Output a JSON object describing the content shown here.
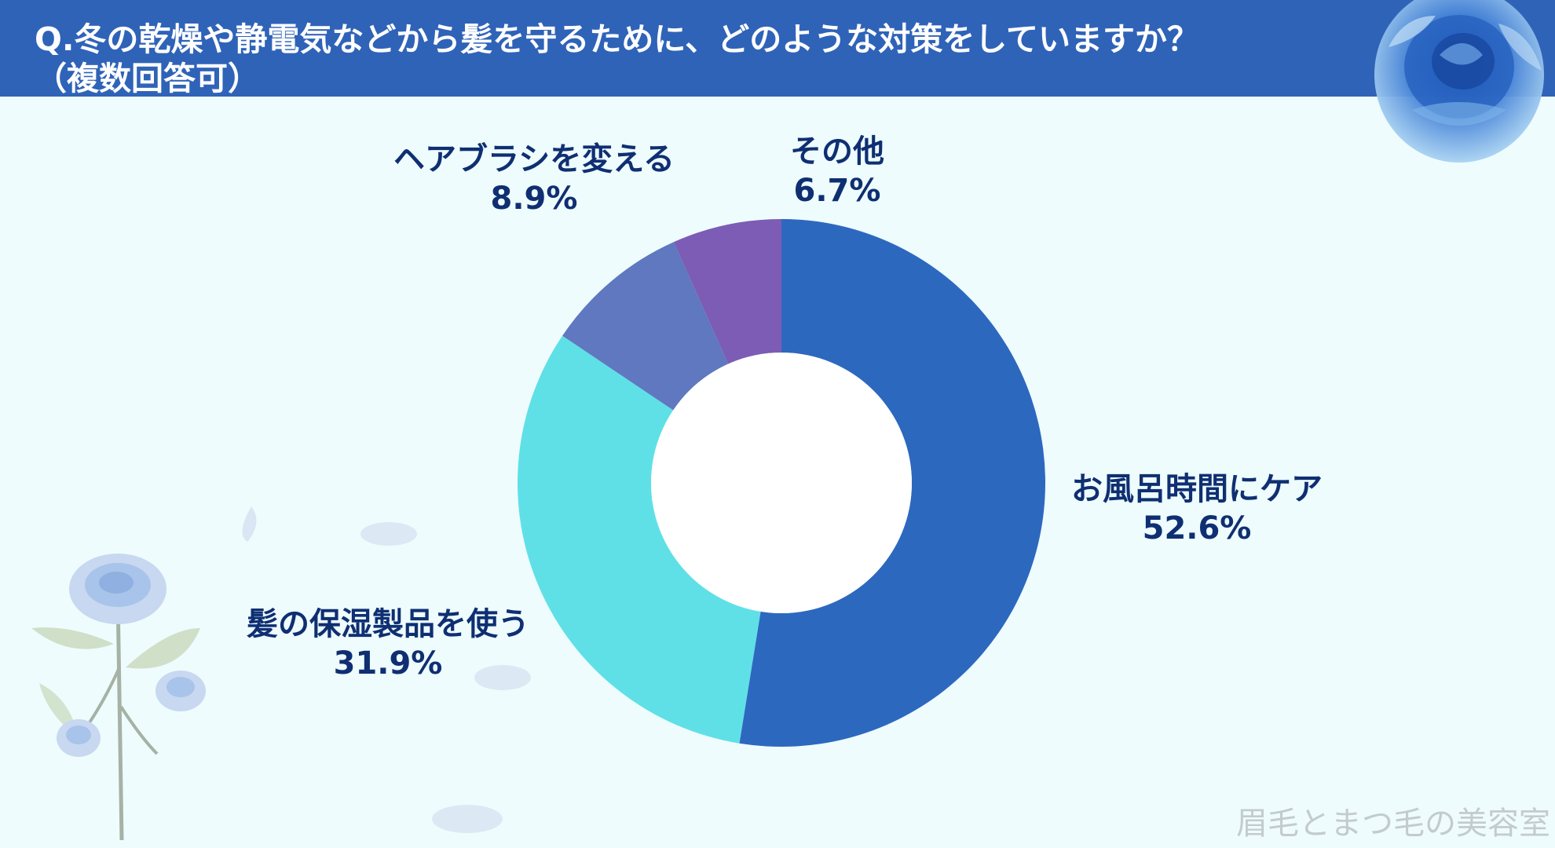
{
  "header": {
    "title_line1": "Q.冬の乾燥や静電気などから髪を守るために、どのような対策をしていますか？",
    "title_line2": "（複数回答可）"
  },
  "colors": {
    "header_bg": "#2f63b8",
    "page_bg": "#eefcfd",
    "label_text": "#0f2f72"
  },
  "chart_data": {
    "type": "pie",
    "variant": "donut",
    "title": "Q.冬の乾燥や静電気などから髪を守るために、どのような対策をしていますか？（複数回答可）",
    "slices": [
      {
        "label": "お風呂時間にケア",
        "value": 52.6,
        "value_label": "52.6%",
        "color": "#2d68bf"
      },
      {
        "label": "髪の保湿製品を使う",
        "value": 31.9,
        "value_label": "31.9%",
        "color": "#5fe0e6"
      },
      {
        "label": "ヘアブラシを変える",
        "value": 8.9,
        "value_label": "8.9%",
        "color": "#5f78bf"
      },
      {
        "label": "その他",
        "value": 6.7,
        "value_label": "6.7%",
        "color": "#7c5cb5"
      }
    ],
    "start": "12 o'clock",
    "direction": "clockwise"
  },
  "decorations": {
    "top_right": "blue-rose-icon",
    "bottom_left": "blue-rose-stem-icon",
    "petals": "petal-icon"
  },
  "watermark": "眉毛とまつ毛の美容室"
}
